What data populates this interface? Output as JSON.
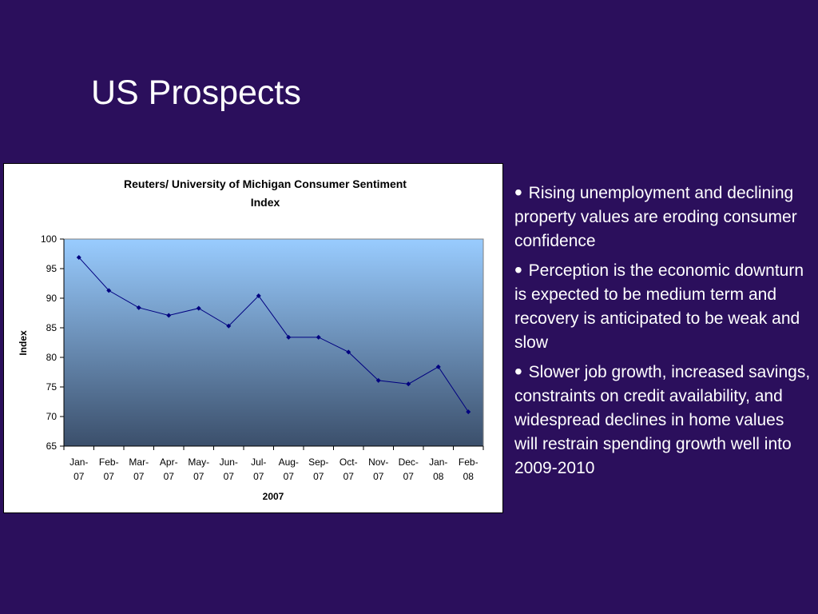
{
  "slide": {
    "title": "US Prospects",
    "bullets": [
      "Rising unemployment and declining property values are eroding consumer confidence",
      "Perception is the economic downturn is expected to be medium term and recovery is anticipated to be weak and slow",
      "Slower job growth, increased savings, constraints on credit availability, and widespread declines in home values will restrain spending growth well into 2009-2010"
    ],
    "bullet_symbol": "•"
  },
  "chart_data": {
    "type": "line",
    "title_lines": [
      "Reuters/ University of Michigan Consumer Sentiment",
      "Index"
    ],
    "xlabel": "2007",
    "ylabel": "Index",
    "ylim": [
      65,
      100
    ],
    "yticks": [
      100,
      95,
      90,
      85,
      80,
      75,
      70,
      65
    ],
    "categories": [
      [
        "Jan-",
        "07"
      ],
      [
        "Feb-",
        "07"
      ],
      [
        "Mar-",
        "07"
      ],
      [
        "Apr-",
        "07"
      ],
      [
        "May-",
        "07"
      ],
      [
        "Jun-",
        "07"
      ],
      [
        "Jul-",
        "07"
      ],
      [
        "Aug-",
        "07"
      ],
      [
        "Sep-",
        "07"
      ],
      [
        "Oct-",
        "07"
      ],
      [
        "Nov-",
        "07"
      ],
      [
        "Dec-",
        "07"
      ],
      [
        "Jan-",
        "08"
      ],
      [
        "Feb-",
        "08"
      ]
    ],
    "series": [
      {
        "values": [
          96.9,
          91.3,
          88.4,
          87.1,
          88.3,
          85.3,
          90.4,
          83.4,
          83.4,
          80.9,
          76.1,
          75.5,
          78.4,
          70.8
        ]
      }
    ],
    "grid": false,
    "legend": "none",
    "colors": {
      "line": "#000080",
      "plot_top": "#99ccff",
      "plot_bottom": "#3b4f6b"
    }
  }
}
